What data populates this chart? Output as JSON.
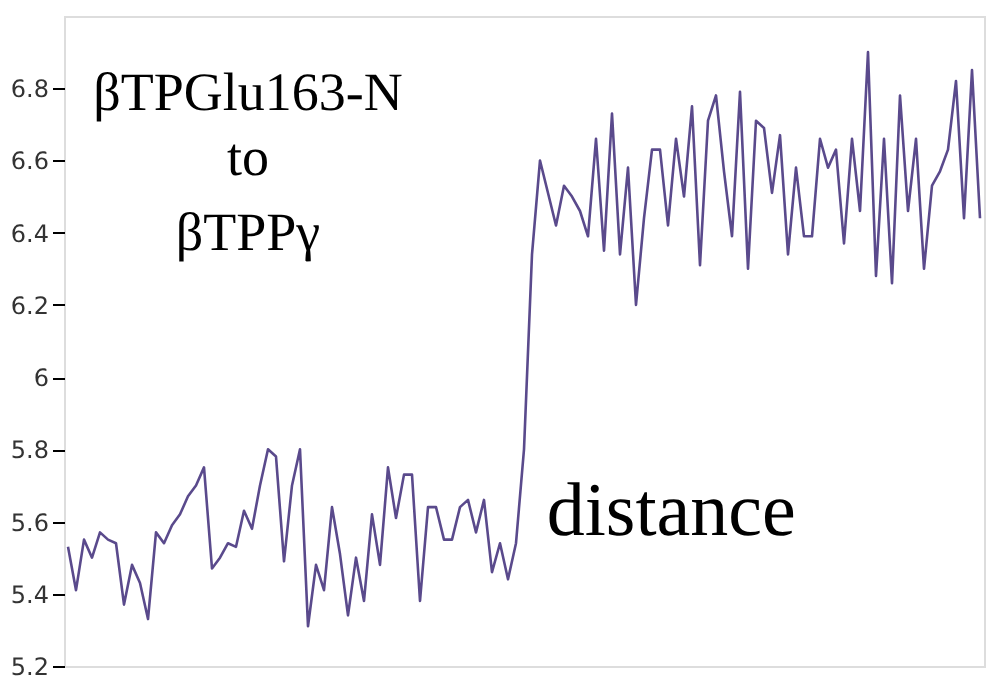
{
  "chart_data": {
    "type": "line",
    "annotations": [
      "βTPGlu163-N",
      "to",
      "βTPPγ",
      "distance"
    ],
    "categories": [
      null,
      null,
      null,
      null,
      null,
      null,
      null,
      null,
      null,
      null,
      null,
      null,
      null,
      null,
      null,
      null,
      null,
      null,
      null,
      null,
      null,
      null,
      null,
      null,
      null,
      null,
      null,
      null,
      null,
      null,
      null,
      null,
      null,
      null,
      null,
      null,
      null,
      null,
      null,
      null,
      null,
      null,
      null,
      null,
      null,
      null,
      null,
      null,
      null,
      null,
      null,
      null,
      null,
      null,
      null,
      null,
      null,
      null,
      null,
      null,
      null,
      null,
      null,
      null,
      null,
      null,
      null,
      null,
      null,
      null,
      null,
      null,
      null,
      null,
      null,
      null,
      null,
      null,
      null,
      null,
      null,
      null,
      null,
      null,
      null,
      null,
      null,
      null,
      null,
      null,
      null,
      null,
      null,
      null,
      null,
      null,
      null,
      null,
      null,
      null,
      null,
      null,
      null,
      null,
      null,
      null,
      null,
      null,
      null,
      null,
      null,
      null,
      null,
      null,
      null
    ],
    "series": [
      {
        "color": "#5a4a8c",
        "values": [
          5.53,
          5.41,
          5.55,
          5.5,
          5.57,
          5.55,
          5.54,
          5.37,
          5.48,
          5.43,
          5.33,
          5.57,
          5.54,
          5.59,
          5.62,
          5.67,
          5.7,
          5.75,
          5.47,
          5.5,
          5.54,
          5.53,
          5.63,
          5.58,
          5.7,
          5.8,
          5.78,
          5.49,
          5.7,
          5.8,
          5.31,
          5.48,
          5.41,
          5.64,
          5.51,
          5.34,
          5.5,
          5.38,
          5.62,
          5.48,
          5.75,
          5.61,
          5.73,
          5.73,
          5.38,
          5.64,
          5.64,
          5.55,
          5.55,
          5.64,
          5.66,
          5.57,
          5.66,
          5.46,
          5.54,
          5.44,
          5.54,
          5.8,
          6.34,
          6.6,
          6.51,
          6.42,
          6.53,
          6.5,
          6.46,
          6.39,
          6.66,
          6.35,
          6.73,
          6.34,
          6.58,
          6.2,
          6.44,
          6.63,
          6.63,
          6.42,
          6.66,
          6.5,
          6.75,
          6.31,
          6.71,
          6.78,
          6.57,
          6.39,
          6.79,
          6.3,
          6.71,
          6.69,
          6.51,
          6.67,
          6.34,
          6.58,
          6.39,
          6.39,
          6.66,
          6.58,
          6.63,
          6.37,
          6.66,
          6.46,
          6.9,
          6.28,
          6.66,
          6.26,
          6.78,
          6.46,
          6.66,
          6.3,
          6.53,
          6.57,
          6.63,
          6.82,
          6.44,
          6.85,
          6.44
        ]
      }
    ],
    "ylim": [
      5.2,
      7.0
    ],
    "yticks": [
      5.2,
      5.4,
      5.6,
      5.8,
      6,
      6.2,
      6.4,
      6.6,
      6.8
    ],
    "tick_labels": "y",
    "grid": false,
    "marker": "none",
    "line_style": "solid"
  }
}
